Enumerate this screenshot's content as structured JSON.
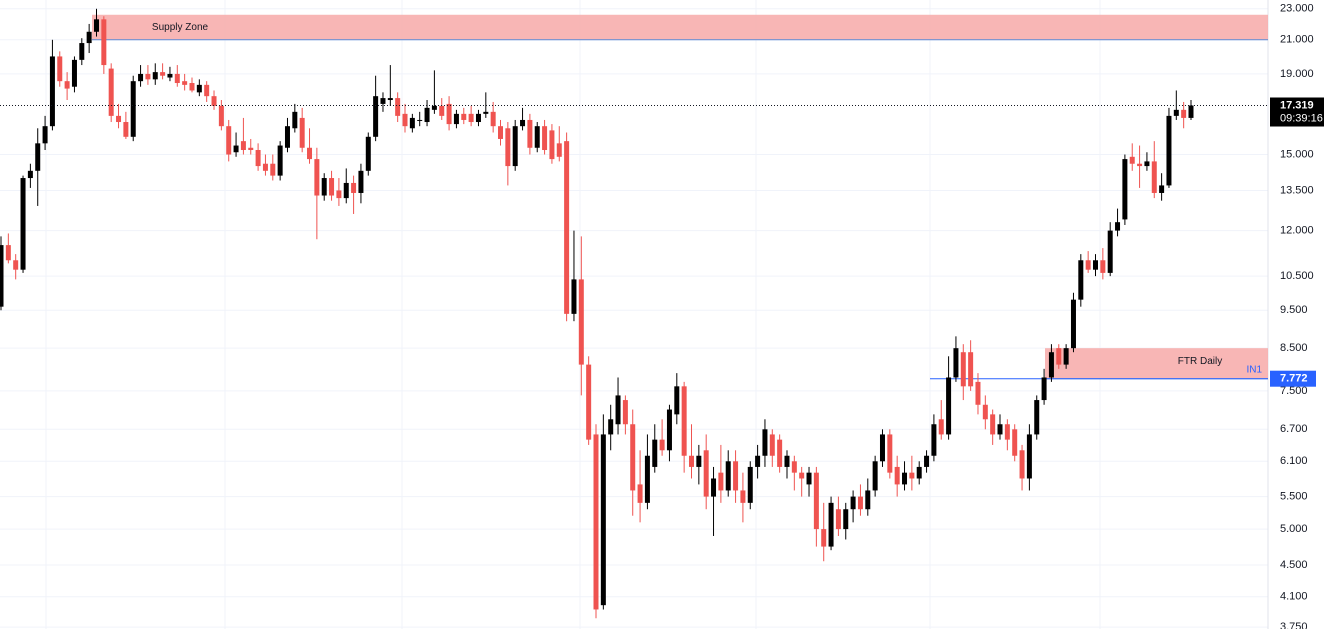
{
  "chart_data": {
    "type": "candlestick",
    "log_scale": true,
    "grid": true,
    "up_color": "#000000",
    "down_color": "#ef5350",
    "ylim": [
      3.73,
      23.6
    ],
    "yticks": [
      {
        "value": 23,
        "label": "23.000"
      },
      {
        "value": 21,
        "label": "21.000"
      },
      {
        "value": 19,
        "label": "19.000"
      },
      {
        "value": 15,
        "label": "15.000"
      },
      {
        "value": 13.5,
        "label": "13.500"
      },
      {
        "value": 12,
        "label": "12.000"
      },
      {
        "value": 10.5,
        "label": "10.500"
      },
      {
        "value": 9.5,
        "label": "9.500"
      },
      {
        "value": 8.5,
        "label": "8.500"
      },
      {
        "value": 7.5,
        "label": "7.500"
      },
      {
        "value": 6.7,
        "label": "6.700"
      },
      {
        "value": 6.1,
        "label": "6.100"
      },
      {
        "value": 5.5,
        "label": "5.500"
      },
      {
        "value": 5,
        "label": "5.000"
      },
      {
        "value": 4.5,
        "label": "4.500"
      },
      {
        "value": 4.1,
        "label": "4.100"
      },
      {
        "value": 3.75,
        "label": "3.750"
      }
    ],
    "zones": [
      {
        "label": "Supply Zone",
        "from": 21,
        "to": 22.6,
        "color": "#f7a9a8"
      },
      {
        "label": "FTR Daily",
        "from": 7.772,
        "to": 8.5,
        "color": "#f7a9a8"
      }
    ],
    "level": {
      "value": 7.772,
      "label": "7.772",
      "color": "#2962ff",
      "tag": "IN1"
    },
    "last_price": {
      "value": 17.319,
      "label": "17.319",
      "countdown": "09:39:16"
    },
    "candles": [
      [
        9.6,
        11.8,
        9.5,
        11.5
      ],
      [
        11.5,
        11.9,
        10.9,
        11.0
      ],
      [
        11.0,
        11.2,
        10.4,
        10.7
      ],
      [
        10.7,
        14.1,
        10.6,
        14.0
      ],
      [
        14.0,
        14.6,
        13.6,
        14.3
      ],
      [
        14.3,
        16.2,
        12.9,
        15.5
      ],
      [
        15.5,
        16.8,
        15.2,
        16.3
      ],
      [
        16.3,
        21.0,
        16.1,
        20.0
      ],
      [
        20.0,
        20.3,
        18.3,
        18.6
      ],
      [
        18.6,
        19.1,
        17.6,
        18.2
      ],
      [
        18.3,
        20.0,
        18.0,
        19.8
      ],
      [
        19.8,
        21.1,
        19.5,
        20.8
      ],
      [
        20.8,
        22.0,
        20.2,
        21.5
      ],
      [
        21.5,
        23.0,
        21.2,
        22.3
      ],
      [
        22.3,
        22.5,
        19.0,
        19.5
      ],
      [
        19.3,
        19.6,
        16.5,
        16.8
      ],
      [
        16.8,
        17.4,
        16.2,
        16.5
      ],
      [
        16.5,
        17.0,
        15.7,
        15.8
      ],
      [
        15.8,
        18.9,
        15.6,
        18.6
      ],
      [
        18.6,
        19.5,
        18.3,
        19.0
      ],
      [
        19.0,
        19.5,
        18.4,
        18.7
      ],
      [
        18.7,
        19.6,
        18.4,
        19.1
      ],
      [
        19.1,
        19.6,
        18.7,
        18.9
      ],
      [
        18.8,
        19.4,
        18.6,
        19.0
      ],
      [
        19.0,
        19.5,
        18.3,
        18.5
      ],
      [
        18.6,
        19.0,
        18.1,
        18.4
      ],
      [
        18.5,
        18.8,
        18.0,
        18.1
      ],
      [
        18.0,
        18.7,
        17.8,
        18.4
      ],
      [
        18.4,
        18.6,
        17.5,
        17.8
      ],
      [
        17.8,
        18.1,
        17.1,
        17.3
      ],
      [
        17.3,
        17.6,
        16.1,
        16.3
      ],
      [
        16.3,
        16.6,
        14.7,
        15.0
      ],
      [
        15.1,
        16.0,
        14.9,
        15.4
      ],
      [
        15.6,
        16.7,
        15.0,
        15.2
      ],
      [
        15.3,
        15.7,
        15.0,
        15.2
      ],
      [
        15.2,
        15.5,
        14.3,
        14.5
      ],
      [
        14.6,
        15.0,
        14.1,
        14.3
      ],
      [
        14.6,
        15.0,
        13.9,
        14.1
      ],
      [
        14.1,
        15.6,
        13.9,
        15.4
      ],
      [
        15.3,
        16.7,
        15.1,
        16.3
      ],
      [
        16.2,
        17.4,
        16.0,
        17.0
      ],
      [
        16.7,
        17.2,
        15.1,
        15.3
      ],
      [
        15.3,
        16.2,
        14.6,
        14.8
      ],
      [
        14.8,
        15.3,
        11.7,
        13.3
      ],
      [
        13.3,
        14.2,
        13.1,
        14.0
      ],
      [
        14.0,
        14.3,
        13.1,
        13.3
      ],
      [
        13.5,
        14.0,
        12.9,
        13.2
      ],
      [
        13.2,
        14.4,
        13.0,
        13.8
      ],
      [
        13.8,
        14.1,
        12.6,
        13.4
      ],
      [
        13.4,
        14.6,
        13.0,
        14.3
      ],
      [
        14.3,
        16.0,
        14.1,
        15.8
      ],
      [
        15.8,
        18.9,
        15.6,
        17.8
      ],
      [
        17.4,
        18.0,
        17.0,
        17.7
      ],
      [
        17.6,
        19.5,
        17.3,
        17.7
      ],
      [
        17.7,
        18.0,
        16.5,
        16.8
      ],
      [
        16.9,
        17.4,
        16.0,
        16.3
      ],
      [
        16.2,
        16.9,
        16.0,
        16.7
      ],
      [
        16.6,
        17.0,
        16.3,
        16.6
      ],
      [
        16.5,
        17.6,
        16.3,
        17.2
      ],
      [
        17.1,
        19.2,
        16.9,
        17.3
      ],
      [
        17.3,
        17.7,
        16.6,
        16.8
      ],
      [
        17.4,
        17.8,
        16.1,
        16.4
      ],
      [
        16.4,
        17.1,
        16.2,
        16.9
      ],
      [
        16.9,
        17.2,
        16.4,
        16.6
      ],
      [
        16.9,
        17.3,
        16.3,
        16.5
      ],
      [
        16.5,
        17.1,
        16.3,
        16.9
      ],
      [
        16.9,
        18.0,
        16.7,
        17.0
      ],
      [
        17.0,
        17.5,
        16.0,
        16.3
      ],
      [
        16.3,
        16.6,
        15.4,
        15.7
      ],
      [
        16.2,
        16.5,
        13.7,
        14.5
      ],
      [
        14.5,
        16.6,
        14.3,
        16.3
      ],
      [
        16.3,
        17.2,
        16.1,
        16.6
      ],
      [
        16.6,
        16.9,
        15.0,
        15.3
      ],
      [
        15.3,
        16.5,
        15.1,
        16.3
      ],
      [
        16.3,
        16.6,
        15.0,
        15.2
      ],
      [
        16.1,
        16.4,
        14.6,
        14.8
      ],
      [
        15.5,
        16.3,
        14.7,
        14.9
      ],
      [
        15.6,
        16.0,
        9.2,
        9.4
      ],
      [
        9.4,
        12.0,
        9.2,
        10.4
      ],
      [
        10.4,
        11.8,
        7.4,
        8.1
      ],
      [
        8.1,
        8.3,
        6.4,
        6.5
      ],
      [
        6.6,
        6.8,
        3.85,
        3.95
      ],
      [
        4.0,
        7.0,
        3.95,
        6.6
      ],
      [
        6.6,
        7.2,
        6.3,
        6.9
      ],
      [
        6.8,
        7.8,
        6.6,
        7.4
      ],
      [
        7.3,
        7.4,
        6.6,
        6.8
      ],
      [
        6.8,
        7.1,
        5.2,
        5.6
      ],
      [
        5.7,
        6.3,
        5.1,
        5.4
      ],
      [
        5.4,
        6.6,
        5.3,
        6.2
      ],
      [
        6.0,
        6.8,
        5.9,
        6.5
      ],
      [
        6.5,
        6.9,
        6.2,
        6.3
      ],
      [
        6.3,
        7.2,
        6.1,
        7.1
      ],
      [
        7.0,
        7.9,
        6.8,
        7.6
      ],
      [
        7.6,
        7.7,
        5.9,
        6.2
      ],
      [
        6.2,
        6.8,
        5.8,
        6.0
      ],
      [
        6.0,
        6.4,
        5.7,
        6.2
      ],
      [
        6.3,
        6.6,
        5.3,
        5.5
      ],
      [
        5.5,
        6.0,
        4.9,
        5.8
      ],
      [
        5.9,
        6.4,
        5.4,
        5.6
      ],
      [
        5.6,
        6.3,
        5.5,
        6.1
      ],
      [
        6.1,
        6.3,
        5.4,
        5.6
      ],
      [
        5.6,
        5.9,
        5.1,
        5.4
      ],
      [
        5.4,
        6.1,
        5.3,
        6.0
      ],
      [
        6.0,
        6.4,
        5.8,
        6.2
      ],
      [
        6.2,
        6.9,
        6.0,
        6.7
      ],
      [
        6.6,
        6.7,
        6.0,
        6.2
      ],
      [
        6.5,
        6.6,
        5.9,
        6.0
      ],
      [
        6.0,
        6.3,
        5.8,
        6.2
      ],
      [
        6.1,
        6.2,
        5.6,
        5.9
      ],
      [
        5.9,
        6.0,
        5.5,
        5.8
      ],
      [
        5.7,
        6.0,
        5.5,
        5.9
      ],
      [
        5.9,
        6.0,
        4.75,
        5.0
      ],
      [
        5.0,
        5.4,
        4.55,
        4.75
      ],
      [
        4.75,
        5.5,
        4.7,
        5.4
      ],
      [
        5.3,
        5.5,
        4.9,
        5.0
      ],
      [
        5.0,
        5.4,
        4.85,
        5.3
      ],
      [
        5.3,
        5.6,
        5.1,
        5.5
      ],
      [
        5.5,
        5.7,
        5.2,
        5.3
      ],
      [
        5.3,
        5.8,
        5.2,
        5.6
      ],
      [
        5.6,
        6.2,
        5.5,
        6.1
      ],
      [
        6.1,
        6.7,
        6.0,
        6.6
      ],
      [
        6.6,
        6.7,
        5.8,
        5.9
      ],
      [
        6.0,
        6.2,
        5.5,
        5.7
      ],
      [
        5.7,
        6.1,
        5.6,
        5.9
      ],
      [
        5.9,
        6.2,
        5.6,
        5.8
      ],
      [
        5.8,
        6.1,
        5.7,
        6.0
      ],
      [
        6.0,
        6.3,
        5.9,
        6.2
      ],
      [
        6.2,
        7.0,
        6.1,
        6.8
      ],
      [
        6.9,
        7.3,
        6.5,
        6.6
      ],
      [
        6.6,
        8.3,
        6.5,
        7.8
      ],
      [
        7.8,
        8.8,
        7.7,
        8.5
      ],
      [
        8.4,
        8.6,
        7.3,
        7.6
      ],
      [
        8.4,
        8.7,
        7.5,
        7.6
      ],
      [
        7.7,
        7.9,
        7.0,
        7.2
      ],
      [
        7.2,
        7.4,
        6.7,
        6.9
      ],
      [
        7.0,
        7.1,
        6.4,
        6.6
      ],
      [
        6.6,
        7.0,
        6.5,
        6.8
      ],
      [
        6.8,
        6.9,
        6.3,
        6.5
      ],
      [
        6.7,
        6.8,
        6.1,
        6.2
      ],
      [
        6.3,
        6.4,
        5.6,
        5.8
      ],
      [
        5.8,
        6.8,
        5.6,
        6.6
      ],
      [
        6.6,
        7.4,
        6.5,
        7.3
      ],
      [
        7.3,
        8.0,
        7.2,
        7.8
      ],
      [
        7.8,
        8.6,
        7.7,
        8.4
      ],
      [
        8.5,
        8.6,
        8.0,
        8.1
      ],
      [
        8.1,
        8.6,
        8.0,
        8.5
      ],
      [
        8.5,
        10.0,
        8.4,
        9.8
      ],
      [
        9.8,
        11.2,
        9.6,
        11.0
      ],
      [
        11.0,
        11.3,
        10.6,
        10.7
      ],
      [
        10.7,
        11.2,
        10.5,
        11.0
      ],
      [
        11.0,
        11.4,
        10.4,
        10.6
      ],
      [
        10.6,
        12.3,
        10.5,
        12.0
      ],
      [
        12.0,
        12.8,
        11.8,
        12.3
      ],
      [
        12.4,
        15.0,
        12.2,
        14.8
      ],
      [
        14.9,
        15.5,
        14.3,
        14.6
      ],
      [
        14.6,
        15.4,
        13.6,
        14.5
      ],
      [
        14.5,
        15.1,
        14.3,
        14.7
      ],
      [
        14.7,
        15.6,
        13.2,
        13.4
      ],
      [
        13.4,
        14.2,
        13.1,
        13.7
      ],
      [
        13.7,
        17.2,
        13.6,
        16.8
      ],
      [
        16.8,
        18.1,
        16.6,
        17.1
      ],
      [
        17.1,
        17.5,
        16.2,
        16.7
      ],
      [
        16.7,
        17.6,
        16.6,
        17.319
      ]
    ]
  }
}
